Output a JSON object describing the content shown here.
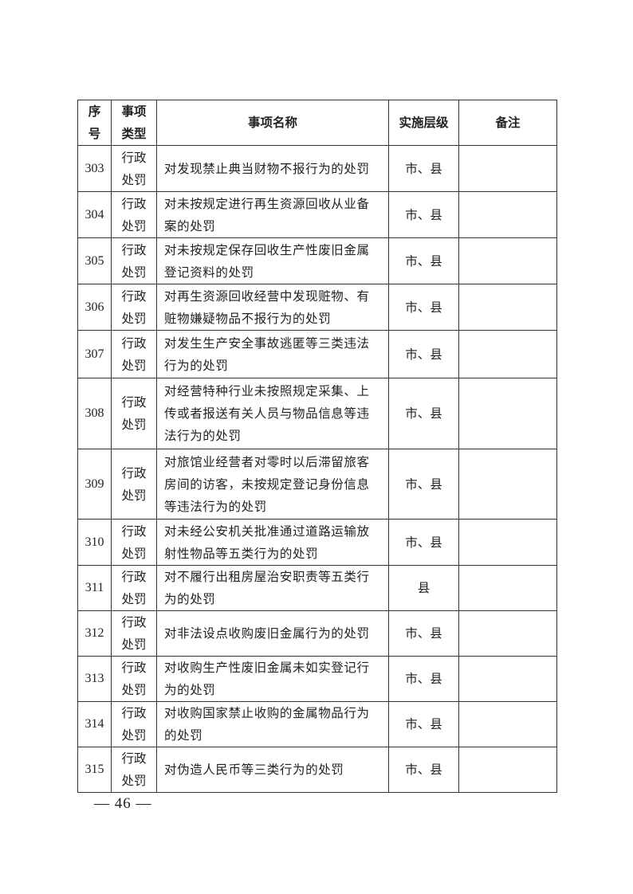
{
  "header": {
    "seq": "序号",
    "type": "事项类型",
    "name": "事项名称",
    "level": "实施层级",
    "note": "备注"
  },
  "rows": [
    {
      "seq": "303",
      "type": "行政处罚",
      "name": "对发现禁止典当财物不报行为的处罚",
      "level": "市、县",
      "note": ""
    },
    {
      "seq": "304",
      "type": "行政处罚",
      "name": "对未按规定进行再生资源回收从业备案的处罚",
      "level": "市、县",
      "note": ""
    },
    {
      "seq": "305",
      "type": "行政处罚",
      "name": "对未按规定保存回收生产性废旧金属登记资料的处罚",
      "level": "市、县",
      "note": ""
    },
    {
      "seq": "306",
      "type": "行政处罚",
      "name": "对再生资源回收经营中发现赃物、有赃物嫌疑物品不报行为的处罚",
      "level": "市、县",
      "note": ""
    },
    {
      "seq": "307",
      "type": "行政处罚",
      "name": "对发生生产安全事故逃匿等三类违法行为的处罚",
      "level": "市、县",
      "note": ""
    },
    {
      "seq": "308",
      "type": "行政处罚",
      "name": "对经营特种行业未按照规定采集、上传或者报送有关人员与物品信息等违法行为的处罚",
      "level": "市、县",
      "note": ""
    },
    {
      "seq": "309",
      "type": "行政处罚",
      "name": "对旅馆业经营者对零时以后滞留旅客房间的访客，未按规定登记身份信息等违法行为的处罚",
      "level": "市、县",
      "note": ""
    },
    {
      "seq": "310",
      "type": "行政处罚",
      "name": "对未经公安机关批准通过道路运输放射性物品等五类行为的处罚",
      "level": "市、县",
      "note": ""
    },
    {
      "seq": "311",
      "type": "行政处罚",
      "name": "对不履行出租房屋治安职责等五类行为的处罚",
      "level": "县",
      "note": ""
    },
    {
      "seq": "312",
      "type": "行政处罚",
      "name": "对非法设点收购废旧金属行为的处罚",
      "level": "市、县",
      "note": ""
    },
    {
      "seq": "313",
      "type": "行政处罚",
      "name": "对收购生产性废旧金属未如实登记行为的处罚",
      "level": "市、县",
      "note": ""
    },
    {
      "seq": "314",
      "type": "行政处罚",
      "name": "对收购国家禁止收购的金属物品行为的处罚",
      "level": "市、县",
      "note": ""
    },
    {
      "seq": "315",
      "type": "行政处罚",
      "name": "对伪造人民币等三类行为的处罚",
      "level": "市、县",
      "note": ""
    }
  ],
  "page_number": "— 46 —"
}
